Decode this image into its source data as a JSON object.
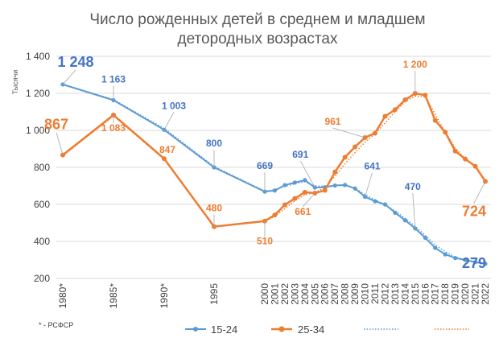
{
  "chart_data": {
    "type": "line",
    "title_lines": [
      "Число рожденных детей в среднем и младшем",
      "детородных возрастах"
    ],
    "ylabel": "Тысячи",
    "ylim": [
      200,
      1400
    ],
    "yticks": [
      200,
      400,
      600,
      800,
      1000,
      1200,
      1400
    ],
    "ytick_labels": [
      "200",
      "400",
      "600",
      "800",
      "1 000",
      "1 200",
      "1 400"
    ],
    "categories": [
      "1980*",
      "1985*",
      "1990*",
      "1995",
      "2000",
      "2001",
      "2002",
      "2003",
      "2004",
      "2005",
      "2006",
      "2007",
      "2008",
      "2009",
      "2010",
      "2011",
      "2012",
      "2013",
      "2014",
      "2015",
      "2016",
      "2017",
      "2018",
      "2019",
      "2020",
      "2021",
      "2022"
    ],
    "footnote": "* - РСФСР",
    "series": [
      {
        "name": "15-24",
        "color": "#5B9BD5",
        "values": [
          1248,
          1163,
          1003,
          800,
          669,
          675,
          704,
          718,
          731,
          691,
          693,
          702,
          705,
          686,
          641,
          617,
          600,
          555,
          514,
          470,
          420,
          365,
          330,
          310,
          300,
          288,
          279
        ]
      },
      {
        "name": "25-34",
        "color": "#ED7D31",
        "values": [
          867,
          1083,
          847,
          480,
          510,
          543,
          598,
          632,
          666,
          661,
          676,
          775,
          855,
          911,
          961,
          985,
          1076,
          1112,
          1165,
          1200,
          1190,
          1054,
          990,
          888,
          845,
          806,
          724
        ]
      }
    ],
    "trendlines": [
      {
        "series": "15-24",
        "values": [
          1250,
          1166,
          1010,
          805,
          672,
          680,
          697,
          712,
          722,
          700,
          698,
          702,
          702,
          688,
          653,
          625,
          598,
          565,
          525,
          482,
          433,
          381,
          345,
          316,
          300,
          290,
          282
        ]
      },
      {
        "series": "25-34",
        "values": [
          862,
          1078,
          843,
          480,
          508,
          536,
          577,
          620,
          652,
          665,
          690,
          752,
          820,
          880,
          935,
          982,
          1040,
          1100,
          1155,
          1185,
          1180,
          1088,
          990,
          905,
          845,
          805,
          732
        ]
      }
    ],
    "data_labels": [
      {
        "series": 0,
        "index": 0,
        "text": "1 248",
        "color": "#4472C4",
        "size": 18
      },
      {
        "series": 0,
        "index": 1,
        "text": "1 163",
        "color": "#4472C4",
        "size": 12
      },
      {
        "series": 0,
        "index": 2,
        "text": "1 003",
        "color": "#4472C4",
        "size": 12
      },
      {
        "series": 0,
        "index": 3,
        "text": "800",
        "color": "#4472C4",
        "size": 12
      },
      {
        "series": 0,
        "index": 4,
        "text": "669",
        "color": "#4472C4",
        "size": 12
      },
      {
        "series": 0,
        "index": 9,
        "text": "691",
        "color": "#4472C4",
        "size": 12
      },
      {
        "series": 0,
        "index": 14,
        "text": "641",
        "color": "#4472C4",
        "size": 12
      },
      {
        "series": 0,
        "index": 19,
        "text": "470",
        "color": "#4472C4",
        "size": 12
      },
      {
        "series": 0,
        "index": 26,
        "text": "279",
        "color": "#4472C4",
        "size": 18
      },
      {
        "series": 1,
        "index": 0,
        "text": "867",
        "color": "#ED7D31",
        "size": 18
      },
      {
        "series": 1,
        "index": 1,
        "text": "1 083",
        "color": "#ED7D31",
        "size": 12
      },
      {
        "series": 1,
        "index": 2,
        "text": "847",
        "color": "#ED7D31",
        "size": 12
      },
      {
        "series": 1,
        "index": 3,
        "text": "480",
        "color": "#ED7D31",
        "size": 12
      },
      {
        "series": 1,
        "index": 4,
        "text": "510",
        "color": "#ED7D31",
        "size": 12
      },
      {
        "series": 1,
        "index": 9,
        "text": "661",
        "color": "#ED7D31",
        "size": 12
      },
      {
        "series": 1,
        "index": 14,
        "text": "961",
        "color": "#ED7D31",
        "size": 12
      },
      {
        "series": 1,
        "index": 19,
        "text": "1 200",
        "color": "#ED7D31",
        "size": 12
      },
      {
        "series": 1,
        "index": 26,
        "text": "724",
        "color": "#ED7D31",
        "size": 18
      }
    ],
    "grid": true,
    "legend": "bottom"
  }
}
